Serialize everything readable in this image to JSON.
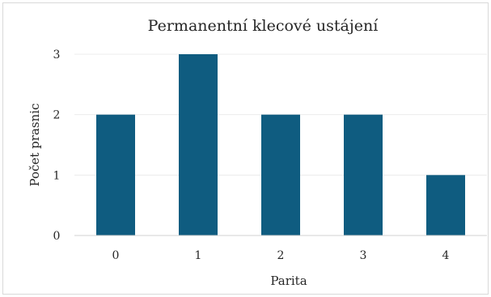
{
  "chart_data": {
    "type": "bar",
    "title": "Permanentní klecové ustájení",
    "xlabel": "Parita",
    "ylabel": "Počet prasnic",
    "categories": [
      "0",
      "1",
      "2",
      "3",
      "4"
    ],
    "values": [
      2,
      3,
      2,
      2,
      1
    ],
    "ylim": [
      0,
      3
    ],
    "yticks": [
      "0",
      "1",
      "2",
      "3"
    ],
    "grid": true,
    "legend": "none",
    "bar_color": "#0f5c80"
  }
}
